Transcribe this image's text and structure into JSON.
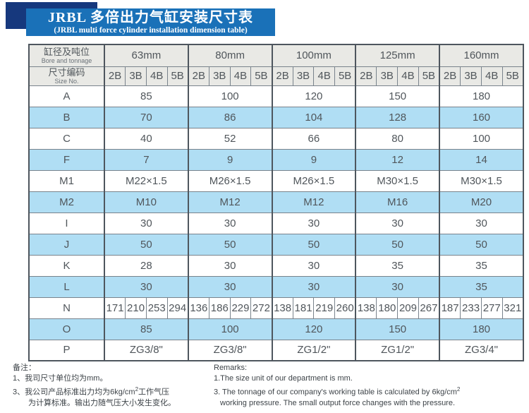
{
  "banner": {
    "title_cn": "JRBL 多倍出力气缸安装尺寸表",
    "title_en": "(JRBL multi force cylinder installation dimension table)",
    "banner_color": "#1a71b8",
    "accent_color": "#16387d"
  },
  "table": {
    "header": {
      "col1_cn": "缸径及吨位",
      "col1_en": "Bore and tonnage",
      "col2_cn": "尺寸编码",
      "col2_en": "Size No.",
      "groups": [
        "63mm",
        "80mm",
        "100mm",
        "125mm",
        "160mm"
      ],
      "size_nos": [
        "2B",
        "3B",
        "4B",
        "5B"
      ]
    },
    "rows": [
      {
        "label": "A",
        "type": "span",
        "values": [
          "85",
          "100",
          "120",
          "150",
          "180"
        ]
      },
      {
        "label": "B",
        "type": "span",
        "values": [
          "70",
          "86",
          "104",
          "128",
          "160"
        ]
      },
      {
        "label": "C",
        "type": "span",
        "values": [
          "40",
          "52",
          "66",
          "80",
          "100"
        ]
      },
      {
        "label": "F",
        "type": "span",
        "values": [
          "7",
          "9",
          "9",
          "12",
          "14"
        ]
      },
      {
        "label": "M1",
        "type": "span",
        "values": [
          "M22×1.5",
          "M26×1.5",
          "M26×1.5",
          "M30×1.5",
          "M30×1.5"
        ]
      },
      {
        "label": "M2",
        "type": "span",
        "values": [
          "M10",
          "M12",
          "M12",
          "M16",
          "M20"
        ]
      },
      {
        "label": "I",
        "type": "span",
        "values": [
          "30",
          "30",
          "30",
          "30",
          "30"
        ]
      },
      {
        "label": "J",
        "type": "span",
        "values": [
          "50",
          "50",
          "50",
          "50",
          "50"
        ]
      },
      {
        "label": "K",
        "type": "span",
        "values": [
          "28",
          "30",
          "30",
          "35",
          "35"
        ]
      },
      {
        "label": "L",
        "type": "span",
        "values": [
          "30",
          "30",
          "30",
          "30",
          "35"
        ]
      },
      {
        "label": "N",
        "type": "cells",
        "values": [
          "171",
          "210",
          "253",
          "294",
          "136",
          "186",
          "229",
          "272",
          "138",
          "181",
          "219",
          "260",
          "138",
          "180",
          "209",
          "267",
          "187",
          "233",
          "277",
          "321"
        ]
      },
      {
        "label": "O",
        "type": "span",
        "values": [
          "85",
          "100",
          "120",
          "150",
          "180"
        ]
      },
      {
        "label": "P",
        "type": "span",
        "values": [
          "ZG3/8\"",
          "ZG3/8\"",
          "ZG1/2\"",
          "ZG1/2\"",
          "ZG3/4\""
        ]
      }
    ],
    "row_blue_color": "#b0def4",
    "header_gray_color": "#e9e9e5"
  },
  "notes": {
    "cn": {
      "title": "备注：",
      "line1": "1、我司尺寸单位均为mm。",
      "line2_pre": "3、我公司产品标准出力均为6kg/cm",
      "line2_sup": "2",
      "line2_post": "工作气压",
      "line3": "为计算标准。输出力随气压大小发生变化。"
    },
    "en": {
      "title": "Remarks:",
      "line1": "1.The size unit of our department is mm.",
      "line2_pre": "3. The tonnage of our company's working table is calculated by 6kg/cm",
      "line2_sup": "2",
      "line3": "working pressure. The small output force changes with the pressure."
    }
  }
}
